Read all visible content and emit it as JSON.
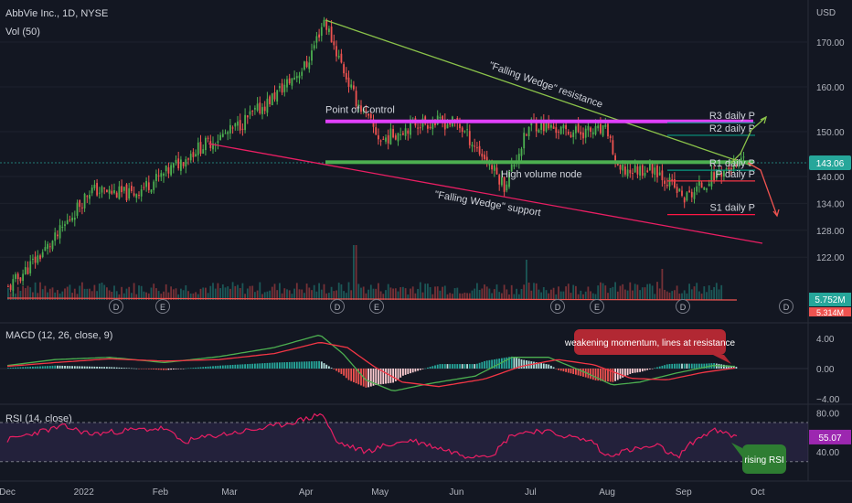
{
  "header": {
    "title": "AbbVie Inc., 1D, NYSE",
    "volume_legend": "Vol (50)",
    "currency": "USD"
  },
  "colors": {
    "background": "#131722",
    "up": "#26a69a",
    "up_candle": "#4caf50",
    "down": "#ef5350",
    "wedge_resistance": "#8bc34a",
    "wedge_support": "#e91e63",
    "poc_line": "#e040fb",
    "hvn_line": "#4caf50",
    "macd_line": "#4caf50",
    "signal_line": "#f23645",
    "rsi_line": "#e91e63",
    "rsi_band": "#7e57c2",
    "price_tag": "#26a69a"
  },
  "chart_data": [
    {
      "type": "candlestick",
      "symbol": "AbbVie Inc., 1D, NYSE",
      "y_axis_ticks": [
        170.0,
        160.0,
        150.0,
        143.06,
        140.0,
        134.0,
        128.0,
        122.0
      ],
      "y_tick_labels": [
        "170.00",
        "160.00",
        "150.00",
        "140.00",
        "134.00",
        "128.00",
        "122.00"
      ],
      "current_price": 143.06,
      "current_price_label": "143.06",
      "x_axis_labels": [
        "Dec",
        "2022",
        "Feb",
        "Mar",
        "Apr",
        "May",
        "Jun",
        "Jul",
        "Aug",
        "Sep",
        "Oct"
      ],
      "price_path_approx": [
        {
          "date": "2021-12-01",
          "price": 115
        },
        {
          "date": "2021-12-20",
          "price": 126
        },
        {
          "date": "2022-01-03",
          "price": 137
        },
        {
          "date": "2022-01-20",
          "price": 136
        },
        {
          "date": "2022-02-01",
          "price": 140
        },
        {
          "date": "2022-02-15",
          "price": 146
        },
        {
          "date": "2022-03-01",
          "price": 150
        },
        {
          "date": "2022-03-15",
          "price": 156
        },
        {
          "date": "2022-04-01",
          "price": 165
        },
        {
          "date": "2022-04-08",
          "price": 175
        },
        {
          "date": "2022-04-20",
          "price": 158
        },
        {
          "date": "2022-05-01",
          "price": 148
        },
        {
          "date": "2022-05-15",
          "price": 152
        },
        {
          "date": "2022-06-01",
          "price": 152
        },
        {
          "date": "2022-06-15",
          "price": 142
        },
        {
          "date": "2022-06-20",
          "price": 138
        },
        {
          "date": "2022-07-01",
          "price": 152
        },
        {
          "date": "2022-07-15",
          "price": 150
        },
        {
          "date": "2022-08-01",
          "price": 150
        },
        {
          "date": "2022-08-05",
          "price": 141
        },
        {
          "date": "2022-08-20",
          "price": 142
        },
        {
          "date": "2022-09-01",
          "price": 135
        },
        {
          "date": "2022-09-15",
          "price": 141
        },
        {
          "date": "2022-09-26",
          "price": 143.06
        }
      ],
      "annotations": [
        "\"Falling Wedge\" resistance",
        "\"Falling Wedge\" support",
        "Point of Control",
        "High volume node"
      ],
      "levels": [
        {
          "label": "R3 daily P",
          "price": 152.0
        },
        {
          "label": "R2 daily P",
          "price": 149.2
        },
        {
          "label": "R1 daily P",
          "price": 141.4
        },
        {
          "label": "P daily P",
          "price": 139.0
        },
        {
          "label": "S1 daily P",
          "price": 131.5
        }
      ],
      "point_of_control": 152.3,
      "high_volume_node": 143.2
    },
    {
      "type": "bar",
      "name": "Volume",
      "legend": "Vol (50)",
      "last_value_label": "5.752M",
      "second_value_label": "5.314M",
      "event_markers": [
        "D",
        "E",
        "D",
        "E",
        "D",
        "E",
        "D",
        "D"
      ]
    },
    {
      "type": "line",
      "name": "MACD",
      "legend": "MACD (12, 26, close, 9)",
      "y_tick_labels": [
        "4.00",
        "0.00",
        "−4.00"
      ],
      "ylim": [
        -4.5,
        5
      ],
      "callout": "weakening momentum, lines at resistance"
    },
    {
      "type": "line",
      "name": "RSI",
      "legend": "RSI (14, close)",
      "y_tick_labels": [
        "80.00",
        "40.00"
      ],
      "ylim": [
        20,
        85
      ],
      "band": [
        30,
        70
      ],
      "current_value_label": "55.07",
      "callout": "rising RSI"
    }
  ]
}
